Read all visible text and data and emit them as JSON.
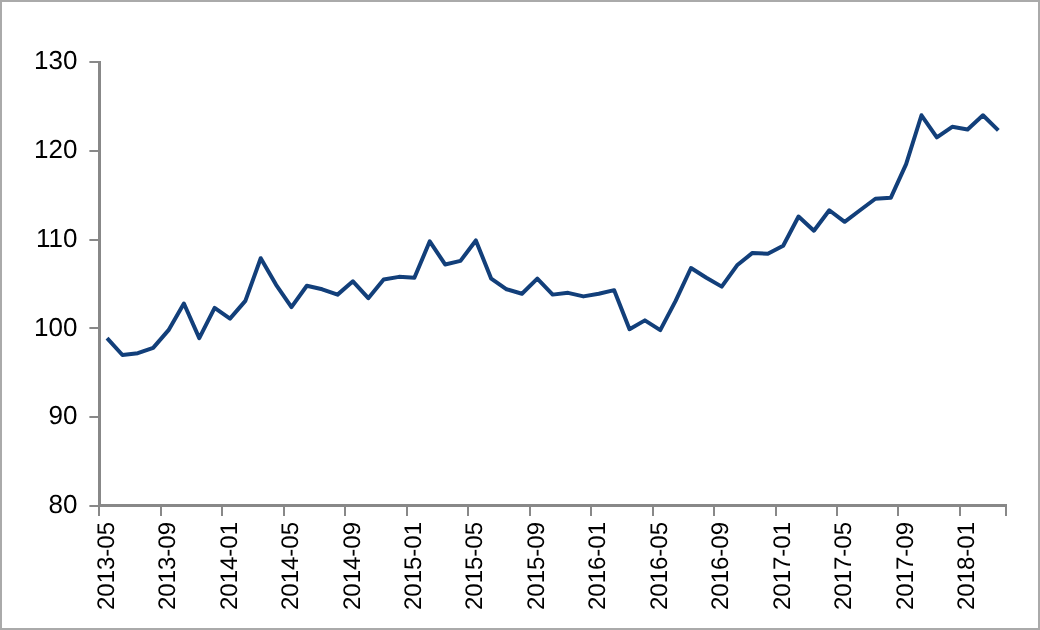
{
  "chart_data": {
    "type": "line",
    "categories": [
      "2013-05",
      null,
      null,
      null,
      "2013-09",
      null,
      null,
      null,
      "2014-01",
      null,
      null,
      null,
      "2014-05",
      null,
      null,
      null,
      "2014-09",
      null,
      null,
      null,
      "2015-01",
      null,
      null,
      null,
      "2015-05",
      null,
      null,
      null,
      "2015-09",
      null,
      null,
      null,
      "2016-01",
      null,
      null,
      null,
      "2016-05",
      null,
      null,
      null,
      "2016-09",
      null,
      null,
      null,
      "2017-01",
      null,
      null,
      null,
      "2017-05",
      null,
      null,
      null,
      "2017-09",
      null,
      null,
      null,
      "2018-01",
      null,
      null
    ],
    "series": [
      {
        "color": "#123f7a",
        "values": [
          98.9,
          97.0,
          97.2,
          97.8,
          99.8,
          102.8,
          98.9,
          102.3,
          101.1,
          103.1,
          107.9,
          104.9,
          102.4,
          104.8,
          104.4,
          103.8,
          105.3,
          103.4,
          105.5,
          105.8,
          105.7,
          109.8,
          107.2,
          107.6,
          109.9,
          105.6,
          104.4,
          103.9,
          105.6,
          103.8,
          104.0,
          103.6,
          103.9,
          104.3,
          99.9,
          100.9,
          99.8,
          103.1,
          106.8,
          105.7,
          104.7,
          107.1,
          108.5,
          108.4,
          109.3,
          112.6,
          111.0,
          113.3,
          112.0,
          113.3,
          114.6,
          114.7,
          118.5,
          124.0,
          121.5,
          122.7,
          122.4,
          124.0,
          122.3
        ]
      }
    ],
    "ylim": [
      80,
      130
    ],
    "yticks": [
      80,
      90,
      100,
      110,
      120,
      130
    ],
    "grid": false,
    "legend": false,
    "marker": "none",
    "line_style": "solid"
  }
}
